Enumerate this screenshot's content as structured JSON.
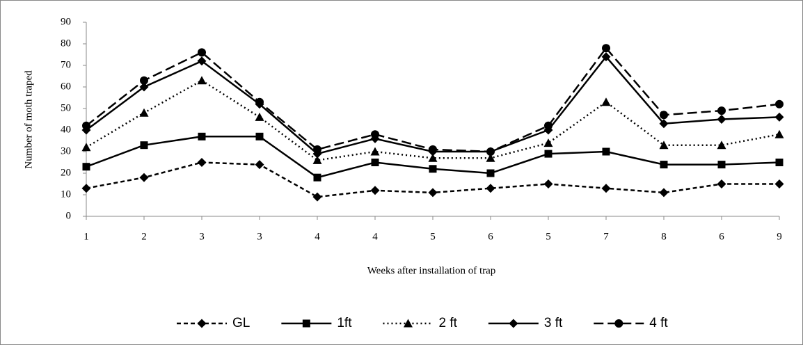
{
  "chart_data": {
    "type": "line",
    "x_label": "Weeks after installation of trap",
    "y_label": "Number of moth traped",
    "categories": [
      "1",
      "2",
      "3",
      "3",
      "4",
      "4",
      "5",
      "6",
      "5",
      "7",
      "8",
      "6",
      "9"
    ],
    "series": [
      {
        "name": "GL",
        "color": "#000000",
        "marker": "diamond",
        "dash": "6,4",
        "values": [
          13,
          18,
          25,
          24,
          9,
          12,
          11,
          13,
          15,
          13,
          11,
          15,
          15
        ]
      },
      {
        "name": "1ft",
        "color": "#000000",
        "marker": "square",
        "dash": "none",
        "values": [
          23,
          33,
          37,
          37,
          18,
          25,
          22,
          20,
          29,
          30,
          24,
          24,
          25
        ]
      },
      {
        "name": "2 ft",
        "color": "#000000",
        "marker": "triangle",
        "dash": "2,4",
        "values": [
          32,
          48,
          63,
          46,
          26,
          30,
          27,
          27,
          34,
          53,
          33,
          33,
          38
        ]
      },
      {
        "name": "3 ft",
        "color": "#000000",
        "marker": "diamond",
        "dash": "none",
        "values": [
          40,
          60,
          72,
          52,
          29,
          36,
          30,
          30,
          40,
          74,
          43,
          45,
          46
        ]
      },
      {
        "name": "4 ft",
        "color": "#000000",
        "marker": "circle",
        "dash": "14,6",
        "values": [
          42,
          63,
          76,
          53,
          31,
          38,
          31,
          30,
          42,
          78,
          47,
          49,
          52
        ]
      }
    ],
    "ylim": [
      0,
      90
    ],
    "yticks": [
      0,
      10,
      20,
      30,
      40,
      50,
      60,
      70,
      80,
      90
    ],
    "legend": "bottom"
  }
}
